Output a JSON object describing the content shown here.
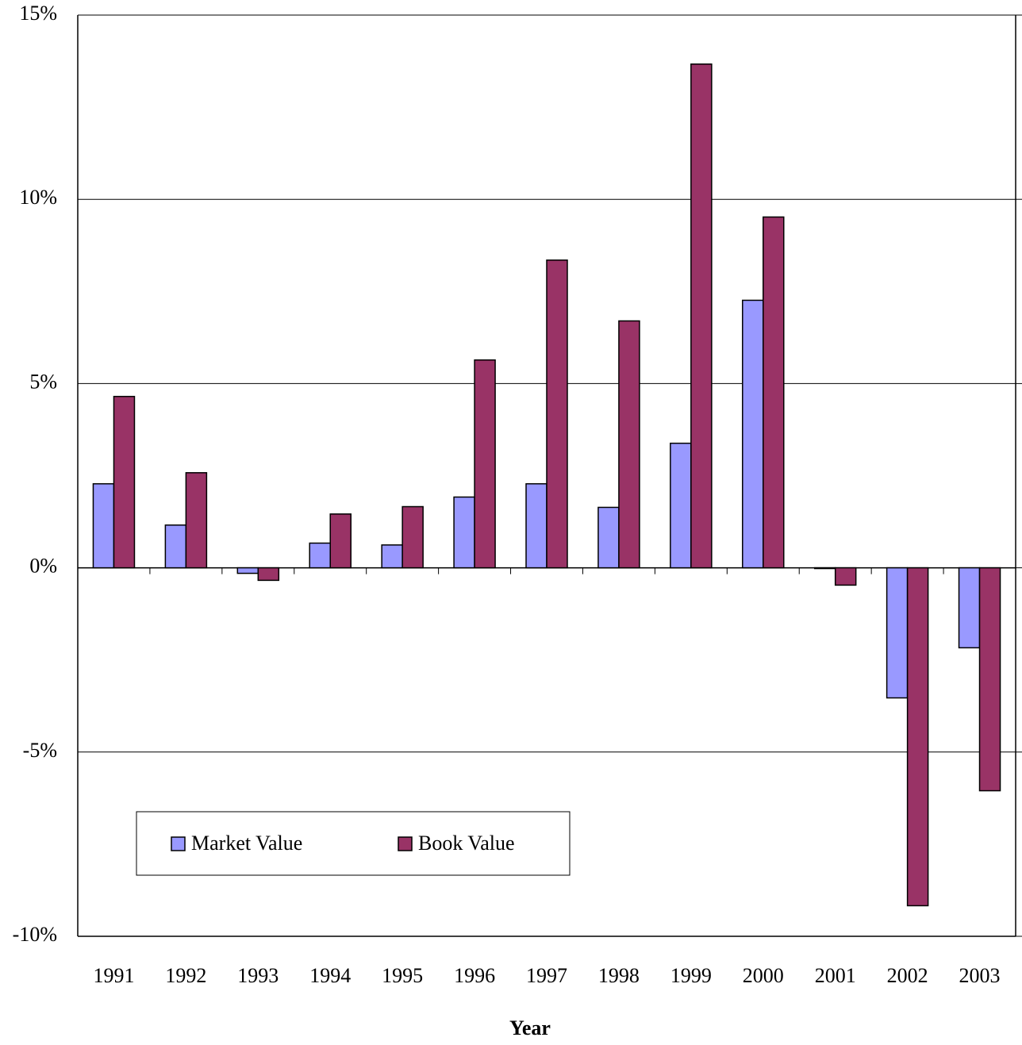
{
  "chart_data": {
    "type": "bar",
    "x_label": "Year",
    "categories": [
      "1991",
      "1992",
      "1993",
      "1994",
      "1995",
      "1996",
      "1997",
      "1998",
      "1999",
      "2000",
      "2001",
      "2002",
      "2003"
    ],
    "series": [
      {
        "name": "Market Value",
        "color": "#9999ff",
        "values": [
          2.28,
          1.16,
          -0.15,
          0.67,
          0.62,
          1.92,
          2.28,
          1.64,
          3.38,
          7.26,
          -0.02,
          -3.53,
          -2.17
        ]
      },
      {
        "name": "Book Value",
        "color": "#993366",
        "values": [
          4.65,
          2.58,
          -0.34,
          1.46,
          1.66,
          5.64,
          8.35,
          6.7,
          13.67,
          9.52,
          -0.47,
          -9.17,
          -6.05
        ]
      }
    ],
    "ylim": [
      -10,
      15
    ],
    "yticks": [
      {
        "value": -10,
        "label": "-10%"
      },
      {
        "value": -5,
        "label": "-5%"
      },
      {
        "value": 0,
        "label": "0%"
      },
      {
        "value": 5,
        "label": "5%"
      },
      {
        "value": 10,
        "label": "10%"
      },
      {
        "value": 15,
        "label": "15%"
      }
    ],
    "grid": true,
    "legend": "lower-left"
  }
}
